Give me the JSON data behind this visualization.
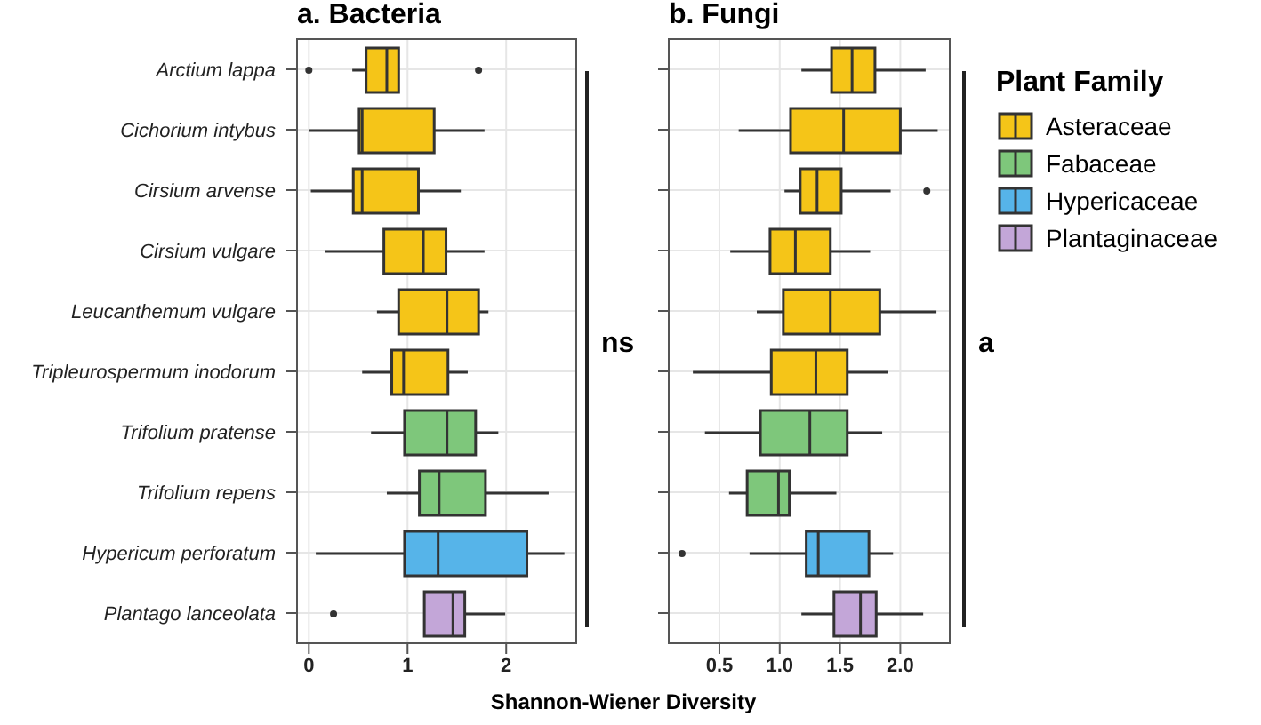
{
  "chart_data": [
    {
      "type": "box",
      "title": "a. Bacteria",
      "xlabel": "Shannon-Wiener Diversity",
      "orientation": "horizontal",
      "grid": true,
      "annotations": [
        "ns"
      ],
      "legend": "right",
      "legend_title": "Plant Family",
      "categories": [
        "Arctium lappa",
        "Cichorium intybus",
        "Cirsium arvense",
        "Cirsium vulgare",
        "Leucanthemum vulgare",
        "Tripleurospermum inodorum",
        "Trifolium pratense",
        "Trifolium repens",
        "Hypericum perforatum",
        "Plantago lanceolata"
      ],
      "xlim": [
        -0.12,
        2.71
      ],
      "xticks": [
        0,
        1,
        2
      ],
      "series": [
        {
          "name": "Asteraceae",
          "color": "#f5c518",
          "boxes": [
            {
              "low": 0.44,
              "q1": 0.58,
              "median": 0.79,
              "q3": 0.91,
              "high": 0.91,
              "outliers": [
                0,
                1.72
              ]
            },
            {
              "low": 0,
              "q1": 0.51,
              "median": 0.54,
              "q3": 1.27,
              "high": 1.78
            },
            {
              "low": 0.02,
              "q1": 0.45,
              "median": 0.54,
              "q3": 1.11,
              "high": 1.54
            },
            {
              "low": 0.16,
              "q1": 0.76,
              "median": 1.16,
              "q3": 1.39,
              "high": 1.78
            },
            {
              "low": 0.69,
              "q1": 0.91,
              "median": 1.4,
              "q3": 1.72,
              "high": 1.82
            },
            {
              "low": 0.54,
              "q1": 0.84,
              "median": 0.96,
              "q3": 1.41,
              "high": 1.61
            },
            null,
            null,
            null,
            null
          ]
        },
        {
          "name": "Fabaceae",
          "color": "#7ec77b",
          "boxes": [
            null,
            null,
            null,
            null,
            null,
            null,
            {
              "low": 0.63,
              "q1": 0.97,
              "median": 1.4,
              "q3": 1.69,
              "high": 1.92
            },
            {
              "low": 0.79,
              "q1": 1.12,
              "median": 1.32,
              "q3": 1.79,
              "high": 2.43
            },
            null,
            null
          ]
        },
        {
          "name": "Hypericaceae",
          "color": "#56b4e9",
          "boxes": [
            null,
            null,
            null,
            null,
            null,
            null,
            null,
            null,
            {
              "low": 0.07,
              "q1": 0.97,
              "median": 1.31,
              "q3": 2.21,
              "high": 2.59
            },
            null
          ]
        },
        {
          "name": "Plantaginaceae",
          "color": "#c3a6d8",
          "boxes": [
            null,
            null,
            null,
            null,
            null,
            null,
            null,
            null,
            null,
            {
              "low": 1.17,
              "q1": 1.17,
              "median": 1.46,
              "q3": 1.58,
              "high": 1.99,
              "outliers": [
                0.25
              ]
            }
          ]
        }
      ]
    },
    {
      "type": "box",
      "title": "b. Fungi",
      "orientation": "horizontal",
      "grid": true,
      "annotations": [
        "a"
      ],
      "tick_labels": "x",
      "categories": [
        null,
        null,
        null,
        null,
        null,
        null,
        null,
        null,
        null,
        null
      ],
      "xlim": [
        0.08,
        2.41
      ],
      "xticks": [
        {
          "value": 0.5,
          "label": "0.5"
        },
        {
          "value": 1,
          "label": "1.0"
        },
        {
          "value": 1.5,
          "label": "1.5"
        },
        {
          "value": 2,
          "label": "2.0"
        }
      ],
      "series": [
        {
          "color": "#f5c518",
          "boxes": [
            {
              "low": 1.18,
              "q1": 1.43,
              "median": 1.6,
              "q3": 1.79,
              "high": 2.21
            },
            {
              "low": 0.66,
              "q1": 1.09,
              "median": 1.53,
              "q3": 2.0,
              "high": 2.31
            },
            {
              "low": 1.04,
              "q1": 1.17,
              "median": 1.31,
              "q3": 1.51,
              "high": 1.92,
              "outliers": [
                2.22
              ]
            },
            {
              "low": 0.59,
              "q1": 0.92,
              "median": 1.13,
              "q3": 1.42,
              "high": 1.75
            },
            {
              "low": 0.81,
              "q1": 1.03,
              "median": 1.42,
              "q3": 1.83,
              "high": 2.3
            },
            {
              "low": 0.28,
              "q1": 0.93,
              "median": 1.3,
              "q3": 1.56,
              "high": 1.9
            },
            null,
            null,
            null,
            null
          ]
        },
        {
          "color": "#7ec77b",
          "boxes": [
            null,
            null,
            null,
            null,
            null,
            null,
            {
              "low": 0.38,
              "q1": 0.84,
              "median": 1.25,
              "q3": 1.56,
              "high": 1.85
            },
            {
              "low": 0.58,
              "q1": 0.73,
              "median": 0.99,
              "q3": 1.08,
              "high": 1.47
            },
            null,
            null
          ]
        },
        {
          "color": "#56b4e9",
          "boxes": [
            null,
            null,
            null,
            null,
            null,
            null,
            null,
            null,
            {
              "low": 0.75,
              "q1": 1.22,
              "median": 1.32,
              "q3": 1.74,
              "high": 1.94,
              "outliers": [
                0.19
              ]
            },
            null
          ]
        },
        {
          "color": "#c3a6d8",
          "boxes": [
            null,
            null,
            null,
            null,
            null,
            null,
            null,
            null,
            null,
            {
              "low": 1.18,
              "q1": 1.45,
              "median": 1.67,
              "q3": 1.8,
              "high": 2.19
            }
          ]
        }
      ]
    }
  ]
}
